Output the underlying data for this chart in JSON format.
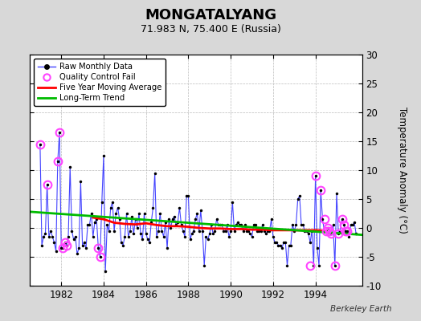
{
  "title_display": "MONGATALYANG",
  "subtitle": "71.983 N, 75.400 E (Russia)",
  "ylabel": "Temperature Anomaly (°C)",
  "watermark": "Berkeley Earth",
  "xlim": [
    1980.5,
    1996.2
  ],
  "ylim": [
    -10,
    30
  ],
  "yticks": [
    -10,
    -5,
    0,
    5,
    10,
    15,
    20,
    25,
    30
  ],
  "xticks": [
    1982,
    1984,
    1986,
    1988,
    1990,
    1992,
    1994
  ],
  "bg_color": "#d8d8d8",
  "plot_bg_color": "#ffffff",
  "raw_color": "#4444ff",
  "ma_color": "#ff0000",
  "trend_color": "#00bb00",
  "qc_color": "#ff44ff",
  "raw_x": [
    1981.0,
    1981.083,
    1981.167,
    1981.25,
    1981.333,
    1981.417,
    1981.5,
    1981.583,
    1981.667,
    1981.75,
    1981.833,
    1981.917,
    1982.0,
    1982.083,
    1982.167,
    1982.25,
    1982.333,
    1982.417,
    1982.5,
    1982.583,
    1982.667,
    1982.75,
    1982.833,
    1982.917,
    1983.0,
    1983.083,
    1983.167,
    1983.25,
    1983.333,
    1983.417,
    1983.5,
    1983.583,
    1983.667,
    1983.75,
    1983.833,
    1983.917,
    1984.0,
    1984.083,
    1984.167,
    1984.25,
    1984.333,
    1984.417,
    1984.5,
    1984.583,
    1984.667,
    1984.75,
    1984.833,
    1984.917,
    1985.0,
    1985.083,
    1985.167,
    1985.25,
    1985.333,
    1985.417,
    1985.5,
    1985.583,
    1985.667,
    1985.75,
    1985.833,
    1985.917,
    1986.0,
    1986.083,
    1986.167,
    1986.25,
    1986.333,
    1986.417,
    1986.5,
    1986.583,
    1986.667,
    1986.75,
    1986.833,
    1986.917,
    1987.0,
    1987.083,
    1987.167,
    1987.25,
    1987.333,
    1987.417,
    1987.5,
    1987.583,
    1987.667,
    1987.75,
    1987.833,
    1987.917,
    1988.0,
    1988.083,
    1988.167,
    1988.25,
    1988.333,
    1988.417,
    1988.5,
    1988.583,
    1988.667,
    1988.75,
    1988.833,
    1988.917,
    1989.0,
    1989.083,
    1989.167,
    1989.25,
    1989.333,
    1989.417,
    1989.5,
    1989.583,
    1989.667,
    1989.75,
    1989.833,
    1989.917,
    1990.0,
    1990.083,
    1990.167,
    1990.25,
    1990.333,
    1990.417,
    1990.5,
    1990.583,
    1990.667,
    1990.75,
    1990.833,
    1990.917,
    1991.0,
    1991.083,
    1991.167,
    1991.25,
    1991.333,
    1991.417,
    1991.5,
    1991.583,
    1991.667,
    1991.75,
    1991.833,
    1991.917,
    1992.0,
    1992.083,
    1992.167,
    1992.25,
    1992.333,
    1992.417,
    1992.5,
    1992.583,
    1992.667,
    1992.75,
    1992.833,
    1992.917,
    1993.0,
    1993.083,
    1993.167,
    1993.25,
    1993.333,
    1993.417,
    1993.5,
    1993.583,
    1993.667,
    1993.75,
    1993.833,
    1993.917,
    1994.0,
    1994.083,
    1994.167,
    1994.25,
    1994.333,
    1994.417,
    1994.5,
    1994.583,
    1994.667,
    1994.75,
    1994.833,
    1994.917,
    1995.0,
    1995.083,
    1995.167,
    1995.25,
    1995.333,
    1995.417,
    1995.5,
    1995.583,
    1995.667,
    1995.75,
    1995.833,
    1995.917
  ],
  "raw_y": [
    14.5,
    -3.0,
    -1.5,
    -1.0,
    7.5,
    -1.5,
    -0.5,
    -1.5,
    -2.5,
    -4.0,
    11.5,
    16.5,
    -3.5,
    -3.5,
    -2.5,
    -3.0,
    -1.5,
    10.5,
    -0.5,
    -2.0,
    -1.5,
    -4.5,
    -3.5,
    8.0,
    -3.0,
    -2.5,
    -3.5,
    0.5,
    0.5,
    2.5,
    -1.5,
    1.0,
    1.5,
    -3.5,
    -5.0,
    4.5,
    12.5,
    -7.5,
    0.5,
    -0.5,
    3.5,
    4.5,
    -0.5,
    2.5,
    3.5,
    1.5,
    -2.5,
    -3.0,
    -1.5,
    2.5,
    -1.5,
    -0.5,
    2.0,
    -1.0,
    1.5,
    0.0,
    2.5,
    -1.0,
    -2.0,
    2.5,
    -1.0,
    -2.0,
    -2.5,
    1.0,
    3.5,
    9.5,
    -1.5,
    -0.5,
    2.5,
    -0.5,
    -1.5,
    1.0,
    -3.5,
    1.5,
    0.0,
    1.5,
    2.0,
    0.5,
    1.0,
    3.5,
    0.5,
    -0.5,
    -1.5,
    5.5,
    5.5,
    -2.0,
    -1.0,
    -0.5,
    1.5,
    2.5,
    -0.5,
    3.0,
    -0.5,
    -6.5,
    -1.5,
    -2.0,
    -1.0,
    0.5,
    -1.0,
    -0.5,
    1.5,
    0.5,
    0.5,
    0.5,
    -0.5,
    -0.5,
    0.5,
    -1.5,
    -0.5,
    4.5,
    -0.5,
    0.5,
    1.0,
    0.5,
    0.5,
    -0.5,
    0.5,
    -0.5,
    -0.5,
    -1.0,
    -1.5,
    0.5,
    0.5,
    -0.5,
    -0.5,
    -0.5,
    0.5,
    -0.5,
    -1.0,
    -0.5,
    -0.5,
    1.5,
    -1.5,
    -2.5,
    -2.5,
    -3.0,
    -3.0,
    -3.5,
    -2.5,
    -2.5,
    -6.5,
    -3.0,
    -3.0,
    0.5,
    -0.5,
    0.5,
    5.0,
    5.5,
    0.5,
    0.5,
    -0.5,
    -0.5,
    -1.0,
    -2.5,
    -0.5,
    -6.5,
    9.0,
    -3.5,
    -6.5,
    6.5,
    1.5,
    -0.5,
    -0.5,
    0.0,
    -0.5,
    -1.0,
    0.5,
    -6.5,
    6.0,
    -1.0,
    -0.5,
    1.5,
    0.5,
    -0.5,
    -0.5,
    -1.5,
    0.5,
    0.5,
    1.0,
    -1.0
  ],
  "qc_x": [
    1981.0,
    1981.333,
    1981.833,
    1981.917,
    1982.083,
    1982.167,
    1982.25,
    1983.75,
    1983.833,
    1993.75,
    1994.0,
    1994.25,
    1994.417,
    1994.5,
    1994.583,
    1994.667,
    1994.75,
    1994.917,
    1995.083,
    1995.25,
    1995.333,
    1995.417,
    1995.5
  ],
  "qc_y": [
    14.5,
    7.5,
    11.5,
    16.5,
    -3.5,
    -2.5,
    -3.0,
    -3.5,
    -5.0,
    -6.5,
    9.0,
    6.5,
    1.5,
    -0.5,
    0.0,
    -0.5,
    -1.0,
    -6.5,
    -1.0,
    1.5,
    0.5,
    -0.5,
    -0.5
  ],
  "ma_x": [
    1983.5,
    1984.0,
    1984.5,
    1985.0,
    1985.5,
    1986.0,
    1986.5,
    1987.0,
    1987.5,
    1988.0,
    1988.5,
    1989.0,
    1989.5,
    1990.0,
    1990.5,
    1991.0,
    1991.5,
    1992.0,
    1992.5,
    1993.0,
    1993.5,
    1994.0,
    1994.5
  ],
  "ma_y": [
    1.8,
    1.5,
    0.9,
    0.7,
    0.6,
    0.8,
    0.5,
    0.3,
    0.3,
    0.2,
    0.0,
    -0.1,
    -0.1,
    -0.2,
    -0.2,
    -0.3,
    -0.3,
    -0.4,
    -0.4,
    -0.4,
    -0.4,
    -0.4,
    -0.5
  ],
  "trend_x": [
    1980.5,
    1996.2
  ],
  "trend_y": [
    2.8,
    -1.2
  ]
}
